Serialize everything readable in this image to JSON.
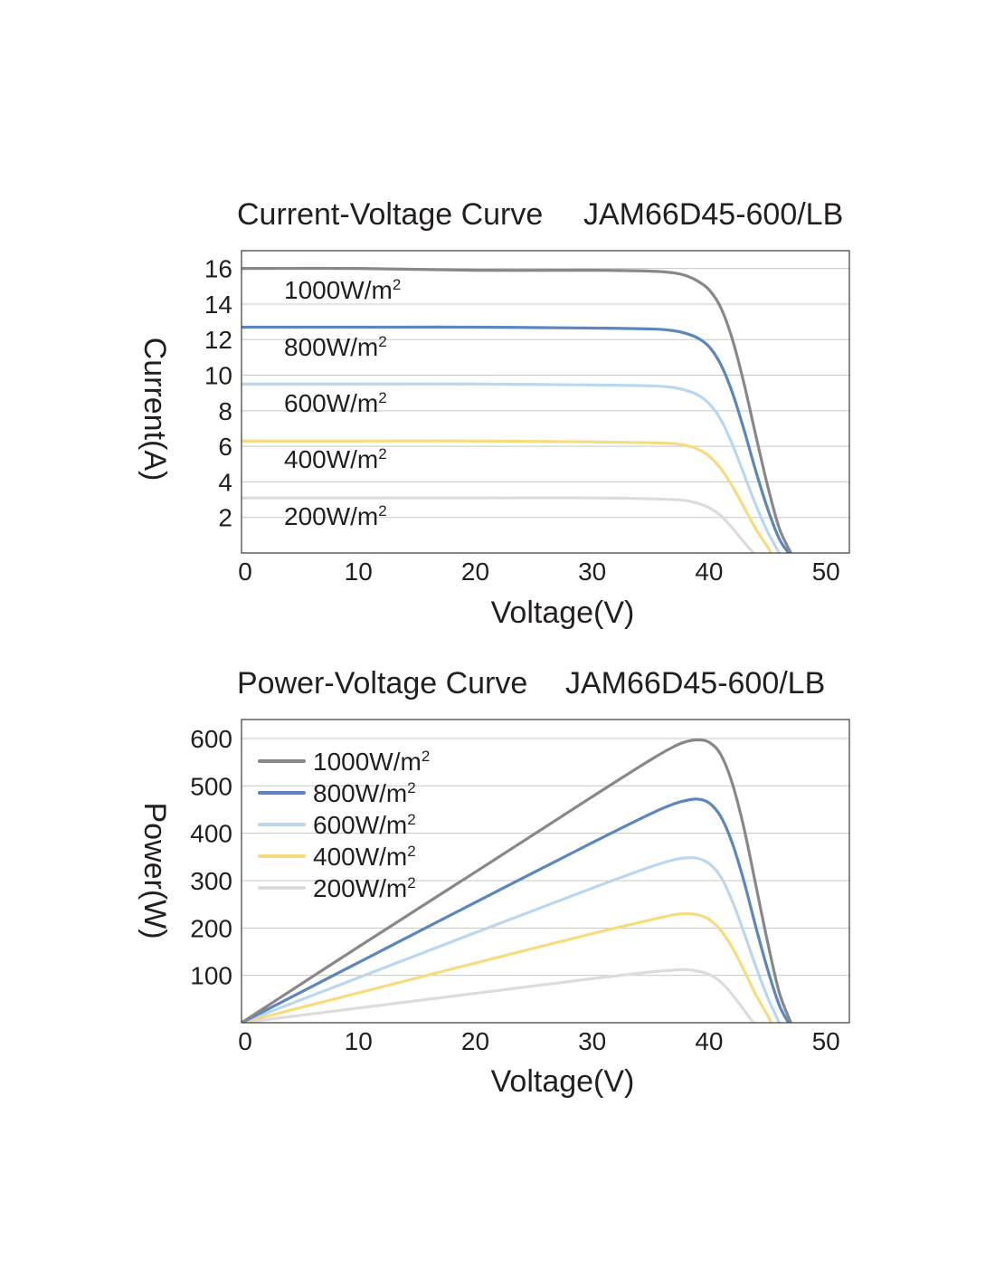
{
  "chart_data": [
    {
      "type": "line",
      "title": "Current-Voltage Curve",
      "model": "JAM66D45-600/LB",
      "xlabel": "Voltage(V)",
      "ylabel": "Current(A)",
      "xlim": [
        0,
        52
      ],
      "ylim": [
        0,
        17
      ],
      "xticks": [
        "0",
        "10",
        "20",
        "30",
        "40",
        "50"
      ],
      "yticks": [
        "2",
        "4",
        "6",
        "8",
        "10",
        "12",
        "14",
        "16"
      ],
      "grid": true,
      "series": [
        {
          "name": "1000W/m",
          "sup": "2",
          "color": "#8a8789",
          "x": [
            0,
            10,
            20,
            30,
            35,
            37,
            38,
            39,
            40,
            41,
            42,
            43,
            44,
            45,
            46,
            47
          ],
          "y": [
            16.0,
            16.0,
            15.9,
            15.9,
            15.85,
            15.75,
            15.6,
            15.3,
            14.8,
            13.8,
            12.0,
            9.5,
            6.6,
            3.8,
            1.4,
            0
          ]
        },
        {
          "name": "800W/m",
          "sup": "2",
          "color": "#5b86be",
          "x": [
            0,
            10,
            20,
            30,
            35,
            37,
            38,
            39,
            40,
            41,
            42,
            43,
            44,
            45,
            46,
            46.8
          ],
          "y": [
            12.7,
            12.7,
            12.7,
            12.65,
            12.6,
            12.5,
            12.35,
            12.1,
            11.6,
            10.6,
            9.0,
            6.9,
            4.6,
            2.5,
            0.8,
            0
          ]
        },
        {
          "name": "600W/m",
          "sup": "2",
          "color": "#b9d8f0",
          "x": [
            0,
            10,
            20,
            30,
            35,
            37,
            38,
            39,
            40,
            41,
            42,
            43,
            44,
            45,
            46
          ],
          "y": [
            9.5,
            9.5,
            9.5,
            9.45,
            9.4,
            9.3,
            9.15,
            8.9,
            8.4,
            7.5,
            6.1,
            4.4,
            2.7,
            1.2,
            0
          ]
        },
        {
          "name": "400W/m",
          "sup": "2",
          "color": "#f7dc7e",
          "x": [
            0,
            10,
            20,
            30,
            35,
            37,
            38,
            39,
            40,
            41,
            42,
            43,
            44,
            45,
            45.3
          ],
          "y": [
            6.3,
            6.3,
            6.3,
            6.25,
            6.2,
            6.15,
            6.05,
            5.85,
            5.45,
            4.75,
            3.75,
            2.55,
            1.35,
            0.35,
            0
          ]
        },
        {
          "name": "200W/m",
          "sup": "2",
          "color": "#dcdcdc",
          "x": [
            0,
            10,
            20,
            30,
            35,
            37,
            38,
            39,
            40,
            41,
            42,
            43,
            43.8
          ],
          "y": [
            3.1,
            3.1,
            3.1,
            3.1,
            3.05,
            3.0,
            2.95,
            2.8,
            2.55,
            2.1,
            1.4,
            0.6,
            0
          ]
        }
      ],
      "labels": [
        "1000W/m",
        "800W/m",
        "600W/m",
        "400W/m",
        "200W/m"
      ]
    },
    {
      "type": "line",
      "title": "Power-Voltage Curve",
      "model": "JAM66D45-600/LB",
      "xlabel": "Voltage(V)",
      "ylabel": "Power(W)",
      "xlim": [
        0,
        52
      ],
      "ylim": [
        0,
        640
      ],
      "xticks": [
        "0",
        "10",
        "20",
        "30",
        "40",
        "50"
      ],
      "yticks": [
        "100",
        "200",
        "300",
        "400",
        "500",
        "600"
      ],
      "grid": true,
      "legend": "top-left",
      "series": [
        {
          "name": "1000W/m",
          "sup": "2",
          "color": "#8a8789",
          "x": [
            0,
            10,
            20,
            30,
            35,
            37,
            38,
            39,
            40,
            41,
            42,
            43,
            44,
            45,
            46,
            47
          ],
          "y": [
            0,
            160,
            318,
            477,
            555,
            583,
            593,
            597,
            592,
            566,
            504,
            409,
            290,
            171,
            64,
            0
          ]
        },
        {
          "name": "800W/m",
          "sup": "2",
          "color": "#5b86be",
          "x": [
            0,
            10,
            20,
            30,
            35,
            37,
            38,
            39,
            40,
            41,
            42,
            43,
            44,
            45,
            46,
            46.8
          ],
          "y": [
            0,
            127,
            254,
            380,
            441,
            462,
            469,
            472,
            464,
            435,
            378,
            297,
            202,
            113,
            37,
            0
          ]
        },
        {
          "name": "600W/m",
          "sup": "2",
          "color": "#b9d8f0",
          "x": [
            0,
            10,
            20,
            30,
            35,
            37,
            38,
            39,
            40,
            41,
            42,
            43,
            44,
            45,
            46
          ],
          "y": [
            0,
            95,
            190,
            284,
            329,
            344,
            348,
            347,
            336,
            308,
            256,
            189,
            119,
            54,
            0
          ]
        },
        {
          "name": "400W/m",
          "sup": "2",
          "color": "#f7dc7e",
          "x": [
            0,
            10,
            20,
            30,
            35,
            37,
            38,
            39,
            40,
            41,
            42,
            43,
            44,
            45,
            45.3
          ],
          "y": [
            0,
            63,
            126,
            188,
            217,
            228,
            230,
            228,
            218,
            195,
            158,
            110,
            59,
            16,
            0
          ]
        },
        {
          "name": "200W/m",
          "sup": "2",
          "color": "#dcdcdc",
          "x": [
            0,
            10,
            20,
            30,
            35,
            37,
            38,
            39,
            40,
            41,
            42,
            43,
            43.8
          ],
          "y": [
            0,
            31,
            62,
            93,
            107,
            111,
            112,
            109,
            102,
            86,
            59,
            26,
            0
          ]
        }
      ]
    }
  ]
}
